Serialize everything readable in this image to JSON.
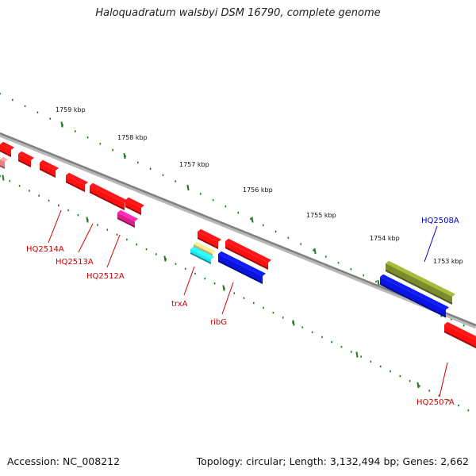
{
  "header": {
    "title": "Haloquadratum walsbyi DSM 16790, complete genome"
  },
  "footer": {
    "accession": "Accession: NC_008212",
    "topology": "Topology: circular; Length: 3,132,494 bp; Genes: 2,662"
  },
  "scale_ticks": [
    "1759 kbp",
    "1758 kbp",
    "1757 kbp",
    "1756 kbp",
    "1755 kbp",
    "1754 kbp",
    "1753 kbp"
  ],
  "gene_labels": [
    {
      "text": "HQ2514A",
      "color": "#cc0000"
    },
    {
      "text": "HQ2513A",
      "color": "#cc0000"
    },
    {
      "text": "HQ2512A",
      "color": "#cc0000"
    },
    {
      "text": "trxA",
      "color": "#cc0000"
    },
    {
      "text": "ribG",
      "color": "#cc0000"
    },
    {
      "text": "HQ2508A",
      "color": "#0000cc"
    },
    {
      "text": "HQ2507A",
      "color": "#cc0000"
    }
  ],
  "colors": {
    "backbone": "#808080",
    "ticks": "#1e7a1e",
    "gene_red": "#ff1010",
    "gene_pink": "#f08080",
    "gene_magenta": "#e0208a",
    "gene_olive": "#7a8c2a",
    "gene_tan": "#b8b070",
    "gene_blue": "#0a14e0",
    "gene_cyan": "#20e8f0"
  }
}
